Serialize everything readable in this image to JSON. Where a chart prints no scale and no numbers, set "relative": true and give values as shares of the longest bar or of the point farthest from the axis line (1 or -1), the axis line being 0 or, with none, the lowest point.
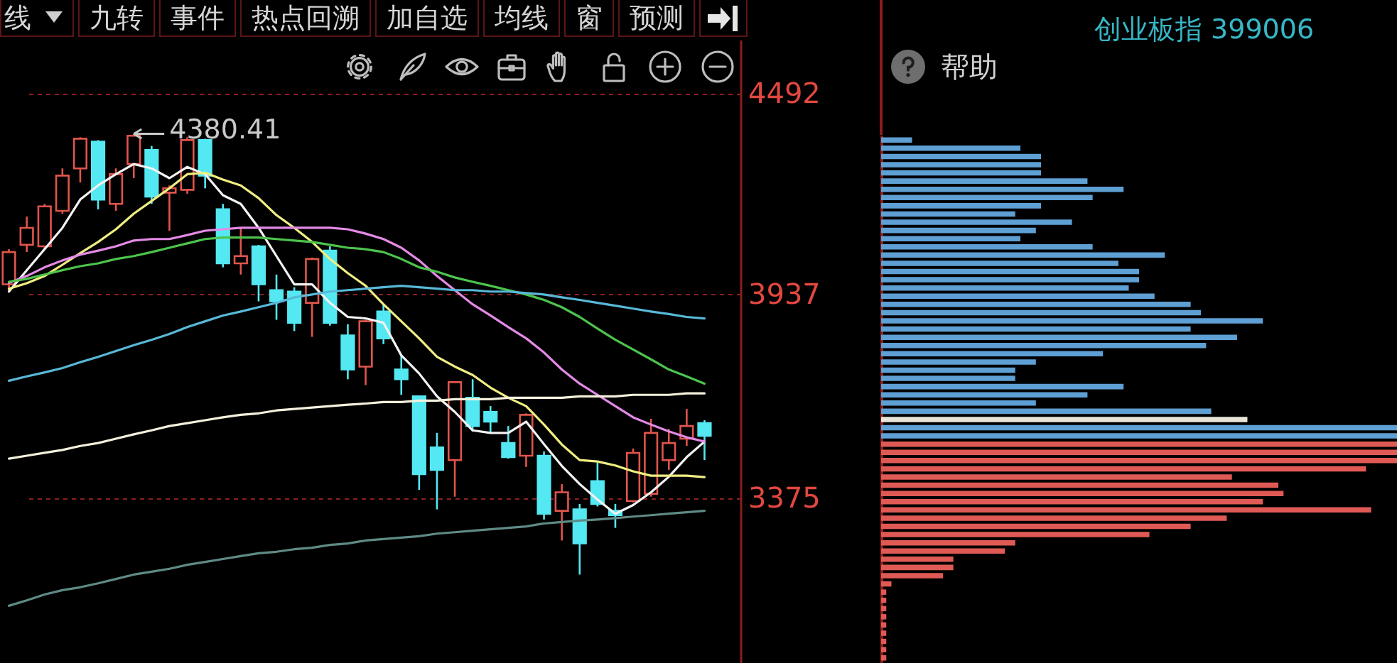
{
  "chart_data": [
    {
      "type": "candlestick",
      "categories": [
        null,
        null,
        null,
        null,
        null,
        null,
        null,
        null,
        null,
        null,
        null,
        null,
        null,
        null,
        null,
        null,
        null,
        null,
        null,
        null,
        null,
        null,
        null,
        null,
        null,
        null,
        null,
        null,
        null,
        null,
        null,
        null,
        null,
        null,
        null,
        null,
        null,
        null,
        null,
        null
      ],
      "ohlc": [
        [
          3965,
          4062,
          3945,
          4054
        ],
        [
          4074,
          4152,
          4054,
          4121
        ],
        [
          4070,
          4187,
          4062,
          4180
        ],
        [
          4168,
          4285,
          4160,
          4265
        ],
        [
          4285,
          4371,
          4246,
          4367
        ],
        [
          4359,
          4363,
          4172,
          4199
        ],
        [
          4187,
          4285,
          4168,
          4269
        ],
        [
          4297,
          4380.41,
          4258,
          4375
        ],
        [
          4336,
          4347,
          4187,
          4207
        ],
        [
          4218,
          4238,
          4113,
          4230
        ],
        [
          4226,
          4371,
          4215,
          4363
        ],
        [
          4363,
          4367,
          4230,
          4265
        ],
        [
          4172,
          4187,
          4012,
          4023
        ],
        [
          4023,
          4121,
          3992,
          4043
        ],
        [
          4070,
          4074,
          3918,
          3965
        ],
        [
          3949,
          3992,
          3867,
          3918
        ],
        [
          3945,
          3957,
          3836,
          3859
        ],
        [
          3914,
          4039,
          3820,
          4035
        ],
        [
          4058,
          4070,
          3851,
          3859
        ],
        [
          3824,
          3855,
          3703,
          3730
        ],
        [
          3738,
          3867,
          3687,
          3863
        ],
        [
          3890,
          3910,
          3800,
          3816
        ],
        [
          3730,
          3769,
          3660,
          3703
        ],
        [
          3656,
          3656,
          3398,
          3441
        ],
        [
          3515,
          3555,
          3344,
          3453
        ],
        [
          3480,
          3695,
          3379,
          3695
        ],
        [
          3652,
          3703,
          3559,
          3574
        ],
        [
          3613,
          3629,
          3555,
          3586
        ],
        [
          3527,
          3574,
          3484,
          3488
        ],
        [
          3492,
          3609,
          3461,
          3605
        ],
        [
          3492,
          3504,
          3316,
          3332
        ],
        [
          3340,
          3414,
          3258,
          3391
        ],
        [
          3344,
          3359,
          3164,
          3250
        ],
        [
          3422,
          3473,
          3352,
          3359
        ],
        [
          3340,
          3359,
          3293,
          3328
        ],
        [
          3367,
          3512,
          3363,
          3500
        ],
        [
          3387,
          3594,
          3379,
          3555
        ],
        [
          3480,
          3566,
          3453,
          3527
        ],
        [
          3539,
          3621,
          3519,
          3574
        ],
        [
          3582,
          3590,
          3480,
          3547
        ]
      ],
      "colors": [
        "#e0554c",
        "#e0554c",
        "#e0554c",
        "#e0554c",
        "#e0554c",
        "#54e8f2",
        "#e0554c",
        "#e0554c",
        "#54e8f2",
        "#e0554c",
        "#e0554c",
        "#54e8f2",
        "#54e8f2",
        "#e0554c",
        "#54e8f2",
        "#54e8f2",
        "#54e8f2",
        "#e0554c",
        "#54e8f2",
        "#54e8f2",
        "#e0554c",
        "#54e8f2",
        "#54e8f2",
        "#54e8f2",
        "#54e8f2",
        "#e0554c",
        "#54e8f2",
        "#54e8f2",
        "#54e8f2",
        "#e0554c",
        "#54e8f2",
        "#e0554c",
        "#54e8f2",
        "#54e8f2",
        "#54e8f2",
        "#e0554c",
        "#e0554c",
        "#e0554c",
        "#e0554c",
        "#54e8f2"
      ],
      "series": [
        {
          "type": "line",
          "color": "#f2f2f2",
          "values": [
            3945,
            4004,
            4062,
            4121,
            4199,
            4238,
            4269,
            4297,
            4285,
            4258,
            4289,
            4269,
            4211,
            4187,
            4121,
            4043,
            3965,
            3965,
            3914,
            3875,
            3871,
            3859,
            3769,
            3719,
            3656,
            3613,
            3562,
            3555,
            3555,
            3586,
            3524,
            3464,
            3414,
            3371,
            3332,
            3356,
            3391,
            3434,
            3488,
            3531
          ]
        },
        {
          "type": "line",
          "color": "#f0ee82",
          "values": [
            3953,
            3968,
            3988,
            4019,
            4051,
            4082,
            4117,
            4160,
            4195,
            4230,
            4269,
            4273,
            4254,
            4238,
            4203,
            4156,
            4121,
            4082,
            4035,
            3996,
            3961,
            3910,
            3863,
            3816,
            3765,
            3738,
            3715,
            3680,
            3652,
            3629,
            3578,
            3523,
            3480,
            3476,
            3465,
            3449,
            3437,
            3437,
            3437,
            3433
          ]
        },
        {
          "type": "line",
          "color": "#e48ae6",
          "values": [
            3969,
            3988,
            4012,
            4031,
            4047,
            4058,
            4070,
            4086,
            4090,
            4090,
            4101,
            4113,
            4117,
            4121,
            4121,
            4121,
            4121,
            4121,
            4121,
            4117,
            4105,
            4090,
            4066,
            4031,
            3988,
            3949,
            3910,
            3879,
            3847,
            3816,
            3777,
            3730,
            3691,
            3660,
            3629,
            3598,
            3578,
            3559,
            3543,
            3531
          ]
        },
        {
          "type": "line",
          "color": "#4cc44c",
          "values": [
            3972,
            3980,
            3992,
            4004,
            4015,
            4023,
            4035,
            4043,
            4054,
            4066,
            4078,
            4090,
            4094,
            4094,
            4094,
            4090,
            4086,
            4082,
            4074,
            4066,
            4062,
            4054,
            4035,
            4012,
            4000,
            3984,
            3972,
            3961,
            3949,
            3937,
            3922,
            3902,
            3875,
            3843,
            3812,
            3785,
            3758,
            3730,
            3711,
            3691
          ]
        },
        {
          "type": "line",
          "color": "#58b8d8",
          "values": [
            3699,
            3711,
            3722,
            3734,
            3750,
            3765,
            3781,
            3797,
            3812,
            3828,
            3847,
            3863,
            3879,
            3890,
            3902,
            3914,
            3929,
            3937,
            3945,
            3949,
            3953,
            3957,
            3961,
            3957,
            3953,
            3949,
            3949,
            3945,
            3945,
            3941,
            3937,
            3929,
            3922,
            3914,
            3906,
            3898,
            3890,
            3883,
            3875,
            3871
          ]
        },
        {
          "type": "line",
          "color": "#f4f0dc",
          "values": [
            3484,
            3492,
            3500,
            3508,
            3519,
            3527,
            3539,
            3551,
            3562,
            3574,
            3582,
            3590,
            3598,
            3605,
            3609,
            3617,
            3621,
            3625,
            3629,
            3633,
            3636,
            3640,
            3640,
            3644,
            3644,
            3648,
            3648,
            3648,
            3652,
            3652,
            3652,
            3652,
            3656,
            3656,
            3656,
            3660,
            3660,
            3660,
            3664,
            3664
          ]
        },
        {
          "type": "line",
          "color": "#5f8a86",
          "values": [
            3078,
            3093,
            3109,
            3121,
            3129,
            3140,
            3152,
            3164,
            3172,
            3180,
            3191,
            3199,
            3207,
            3215,
            3223,
            3227,
            3234,
            3238,
            3246,
            3250,
            3258,
            3262,
            3266,
            3270,
            3277,
            3281,
            3285,
            3289,
            3293,
            3297,
            3305,
            3309,
            3313,
            3316,
            3320,
            3324,
            3328,
            3332,
            3336,
            3340
          ]
        }
      ],
      "ylim": [
        2920,
        4640
      ],
      "yticks": [
        4492,
        3937,
        3375
      ],
      "grid": "y",
      "tick_labels": "y",
      "annotations": [
        "4380.41",
        "线",
        "九转",
        "事件",
        "热点回溯",
        "加自选",
        "均线",
        "窗",
        "预测"
      ]
    },
    {
      "type": "bar",
      "orientation": "horizontal",
      "relative": true,
      "title": "创业板指 399006",
      "categories": [
        null,
        null,
        null,
        null,
        null,
        null,
        null,
        null,
        null,
        null,
        null,
        null,
        null,
        null,
        null,
        null,
        null,
        null,
        null,
        null,
        null,
        null,
        null,
        null,
        null,
        null,
        null,
        null,
        null,
        null,
        null,
        null,
        null,
        null,
        null,
        null,
        null,
        null,
        null,
        null,
        null,
        null,
        null,
        null,
        null,
        null,
        null,
        null,
        null,
        null,
        null,
        null,
        null,
        null,
        null,
        null,
        null,
        null,
        null,
        null,
        null,
        null,
        null,
        null
      ],
      "values": [
        0.06,
        0.27,
        0.31,
        0.31,
        0.31,
        0.4,
        0.47,
        0.41,
        0.31,
        0.26,
        0.37,
        0.3,
        0.27,
        0.41,
        0.55,
        0.46,
        0.5,
        0.5,
        0.48,
        0.53,
        0.6,
        0.62,
        0.74,
        0.6,
        0.69,
        0.63,
        0.43,
        0.3,
        0.26,
        0.26,
        0.47,
        0.4,
        0.3,
        0.64,
        0.71,
        1,
        1,
        1,
        1,
        1,
        0.94,
        0.68,
        0.77,
        0.78,
        0.74,
        0.95,
        0.67,
        0.6,
        0.52,
        0.26,
        0.24,
        0.14,
        0.14,
        0.12,
        0.02,
        0.01,
        0.01,
        0.01,
        0.01,
        0.01,
        0.01,
        0.01,
        0.01,
        0.01
      ],
      "colors": [
        "#5e9fd4",
        "#5e9fd4",
        "#5e9fd4",
        "#5e9fd4",
        "#5e9fd4",
        "#5e9fd4",
        "#5e9fd4",
        "#5e9fd4",
        "#5e9fd4",
        "#5e9fd4",
        "#5e9fd4",
        "#5e9fd4",
        "#5e9fd4",
        "#5e9fd4",
        "#5e9fd4",
        "#5e9fd4",
        "#5e9fd4",
        "#5e9fd4",
        "#5e9fd4",
        "#5e9fd4",
        "#5e9fd4",
        "#5e9fd4",
        "#5e9fd4",
        "#5e9fd4",
        "#5e9fd4",
        "#5e9fd4",
        "#5e9fd4",
        "#5e9fd4",
        "#5e9fd4",
        "#5e9fd4",
        "#5e9fd4",
        "#5e9fd4",
        "#5e9fd4",
        "#5e9fd4",
        "#e8e4d8",
        "#5e9fd4",
        "#5e9fd4",
        "#e05a55",
        "#e05a55",
        "#e05a55",
        "#e05a55",
        "#e05a55",
        "#e05a55",
        "#e05a55",
        "#e05a55",
        "#e05a55",
        "#e05a55",
        "#e05a55",
        "#e05a55",
        "#e05a55",
        "#e05a55",
        "#e05a55",
        "#e05a55",
        "#e05a55",
        "#e05a55",
        "#e05a55",
        "#e05a55",
        "#e05a55",
        "#e05a55",
        "#e05a55",
        "#e05a55",
        "#e05a55",
        "#e05a55",
        "#e05a55"
      ],
      "annotations": [
        "帮助"
      ]
    }
  ]
}
